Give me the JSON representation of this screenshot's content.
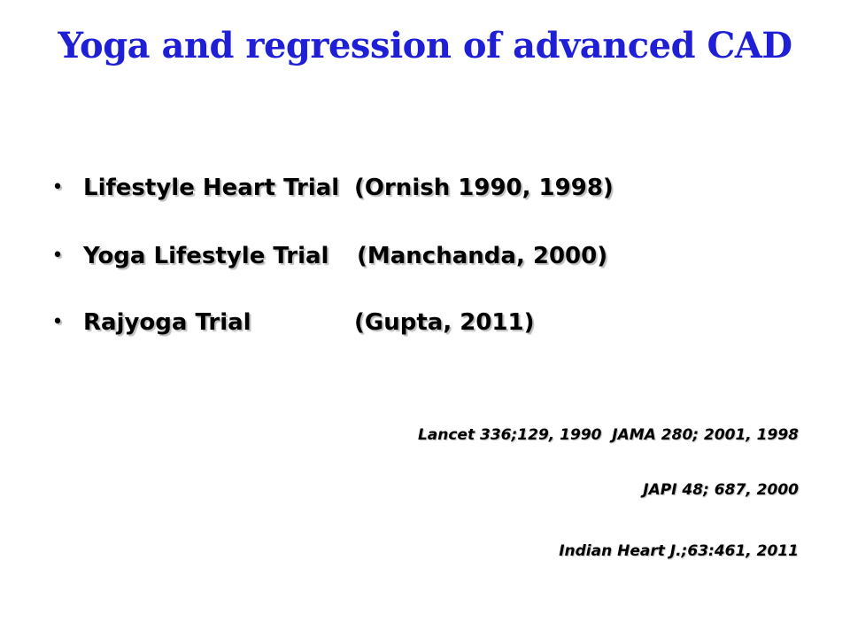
{
  "title": "Yoga and regression of advanced CAD",
  "bullet_symbol": "•",
  "bullets": [
    {
      "name": "Lifestyle Heart Trial",
      "citation": "(Ornish 1990, 1998)"
    },
    {
      "name": "Yoga Lifestyle Trial",
      "citation": "(Manchanda, 2000)"
    },
    {
      "name": "Rajyoga Trial",
      "citation": "(Gupta, 2011)"
    }
  ],
  "references": [
    "Lancet 336;129, 1990  JAMA 280; 2001, 1998",
    "JAPI 48; 687, 2000",
    "Indian Heart J.;63:461, 2011"
  ],
  "colors": {
    "title": "#1f1fd6",
    "text": "#000000"
  }
}
